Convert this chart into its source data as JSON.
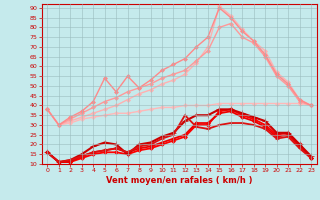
{
  "xlabel": "Vent moyen/en rafales ( km/h )",
  "xlim": [
    -0.5,
    23.5
  ],
  "ylim": [
    10,
    92
  ],
  "yticks": [
    10,
    15,
    20,
    25,
    30,
    35,
    40,
    45,
    50,
    55,
    60,
    65,
    70,
    75,
    80,
    85,
    90
  ],
  "xticks": [
    0,
    1,
    2,
    3,
    4,
    5,
    6,
    7,
    8,
    9,
    10,
    11,
    12,
    13,
    14,
    15,
    16,
    17,
    18,
    19,
    20,
    21,
    22,
    23
  ],
  "background_color": "#c5eaec",
  "grid_color": "#9bbcbe",
  "lines": [
    {
      "x": [
        0,
        1,
        2,
        3,
        4,
        5,
        6,
        7,
        8,
        9,
        10,
        11,
        12,
        13,
        14,
        15,
        16,
        17,
        18,
        19,
        20,
        21,
        22,
        23
      ],
      "y": [
        38,
        30,
        31,
        33,
        34,
        35,
        36,
        36,
        37,
        38,
        39,
        39,
        40,
        40,
        40,
        41,
        41,
        41,
        41,
        41,
        41,
        41,
        41,
        40
      ],
      "color": "#ffb8b8",
      "lw": 1.0,
      "marker": "D",
      "ms": 2.0
    },
    {
      "x": [
        0,
        1,
        2,
        3,
        4,
        5,
        6,
        7,
        8,
        9,
        10,
        11,
        12,
        13,
        14,
        15,
        16,
        17,
        18,
        19,
        20,
        21,
        22,
        23
      ],
      "y": [
        38,
        30,
        32,
        34,
        36,
        38,
        40,
        43,
        46,
        48,
        51,
        53,
        56,
        62,
        70,
        91,
        86,
        79,
        73,
        68,
        57,
        52,
        43,
        40
      ],
      "color": "#ffb0b0",
      "lw": 1.0,
      "marker": "D",
      "ms": 2.0
    },
    {
      "x": [
        0,
        1,
        2,
        3,
        4,
        5,
        6,
        7,
        8,
        9,
        10,
        11,
        12,
        13,
        14,
        15,
        16,
        17,
        18,
        19,
        20,
        21,
        22,
        23
      ],
      "y": [
        38,
        30,
        33,
        36,
        39,
        42,
        44,
        47,
        49,
        51,
        54,
        56,
        58,
        63,
        68,
        80,
        82,
        75,
        72,
        65,
        55,
        50,
        42,
        40
      ],
      "color": "#ff9898",
      "lw": 1.0,
      "marker": "D",
      "ms": 2.0
    },
    {
      "x": [
        0,
        1,
        2,
        3,
        4,
        5,
        6,
        7,
        8,
        9,
        10,
        11,
        12,
        13,
        14,
        15,
        16,
        17,
        18,
        19,
        20,
        21,
        22,
        23
      ],
      "y": [
        38,
        30,
        34,
        37,
        42,
        54,
        47,
        55,
        49,
        53,
        58,
        61,
        64,
        70,
        75,
        90,
        85,
        78,
        73,
        66,
        56,
        51,
        43,
        40
      ],
      "color": "#ff8888",
      "lw": 1.0,
      "marker": "D",
      "ms": 2.0
    },
    {
      "x": [
        0,
        1,
        2,
        3,
        4,
        5,
        6,
        7,
        8,
        9,
        10,
        11,
        12,
        13,
        14,
        15,
        16,
        17,
        18,
        19,
        20,
        21,
        22,
        23
      ],
      "y": [
        16,
        11,
        11,
        13,
        15,
        16,
        16,
        15,
        17,
        18,
        20,
        22,
        24,
        30,
        30,
        37,
        38,
        35,
        33,
        30,
        25,
        26,
        20,
        13
      ],
      "color": "#ff0000",
      "lw": 1.3,
      "marker": "D",
      "ms": 2.0
    },
    {
      "x": [
        0,
        1,
        2,
        3,
        4,
        5,
        6,
        7,
        8,
        9,
        10,
        11,
        12,
        13,
        14,
        15,
        16,
        17,
        18,
        19,
        20,
        21,
        22,
        23
      ],
      "y": [
        16,
        11,
        11,
        14,
        16,
        17,
        18,
        16,
        18,
        19,
        21,
        23,
        25,
        31,
        31,
        36,
        37,
        34,
        32,
        29,
        24,
        25,
        19,
        13
      ],
      "color": "#ee0000",
      "lw": 1.3,
      "marker": "D",
      "ms": 2.0
    },
    {
      "x": [
        0,
        1,
        2,
        3,
        4,
        5,
        6,
        7,
        8,
        9,
        10,
        11,
        12,
        13,
        14,
        15,
        16,
        17,
        18,
        19,
        20,
        21,
        22,
        23
      ],
      "y": [
        16,
        11,
        12,
        15,
        19,
        21,
        20,
        15,
        20,
        21,
        24,
        26,
        32,
        35,
        35,
        38,
        38,
        36,
        34,
        32,
        26,
        26,
        20,
        14
      ],
      "color": "#cc0000",
      "lw": 1.5,
      "marker": "+",
      "ms": 4.0
    },
    {
      "x": [
        0,
        1,
        2,
        3,
        4,
        5,
        6,
        7,
        8,
        9,
        10,
        11,
        12,
        13,
        14,
        15,
        16,
        17,
        18,
        19,
        20,
        21,
        22,
        23
      ],
      "y": [
        16,
        11,
        12,
        14,
        16,
        17,
        18,
        16,
        19,
        20,
        23,
        25,
        35,
        29,
        28,
        30,
        31,
        31,
        30,
        28,
        23,
        24,
        18,
        13
      ],
      "color": "#dd1111",
      "lw": 1.3,
      "marker": "+",
      "ms": 3.5
    }
  ]
}
